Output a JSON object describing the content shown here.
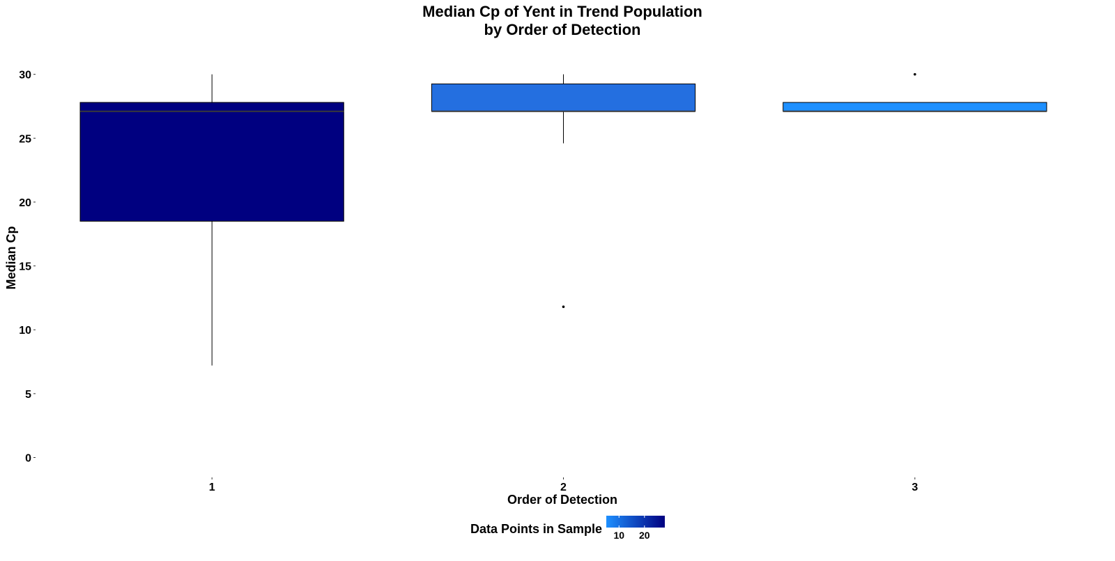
{
  "chart_data": {
    "type": "boxplot",
    "title": [
      "Median Cp of Yent in Trend Population",
      "by Order of Detection"
    ],
    "xlabel": "Order of Detection",
    "ylabel": "Median Cp",
    "categories": [
      "1",
      "2",
      "3"
    ],
    "ylim": [
      -1.5,
      32
    ],
    "y_ticks": [
      0,
      5,
      10,
      15,
      20,
      25,
      30
    ],
    "grid": false,
    "boxes": [
      {
        "category": "1",
        "q1": 18.5,
        "median": 27.1,
        "q3": 27.8,
        "whisker_low": 7.2,
        "whisker_high": 30.0,
        "outliers": [],
        "n": 27,
        "fill": "#000080"
      },
      {
        "category": "2",
        "q1": 27.1,
        "median": 27.1,
        "q3": 29.25,
        "whisker_low": 24.6,
        "whisker_high": 30.0,
        "outliers": [
          11.8
        ],
        "n": 12,
        "fill": "#246fe0"
      },
      {
        "category": "3",
        "q1": 27.1,
        "median": 27.1,
        "q3": 27.8,
        "whisker_low": 27.1,
        "whisker_high": 27.8,
        "outliers": [
          30.0
        ],
        "n": 5,
        "fill": "#1e90ff"
      }
    ],
    "legend": {
      "title": "Data Points in Sample",
      "position": "bottom",
      "range": [
        5,
        28
      ],
      "ticks": [
        10,
        20
      ],
      "color_low": "#1e90ff",
      "color_high": "#000080"
    }
  }
}
